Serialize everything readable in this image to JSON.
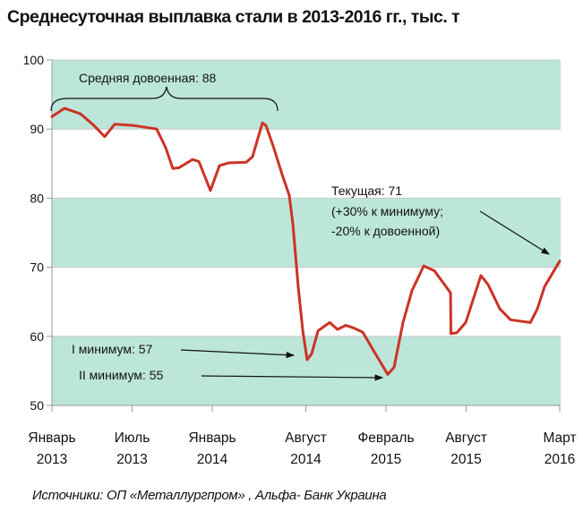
{
  "chart_data": {
    "type": "line",
    "title": "Среднесуточная выплавка стали в 2013-2016 гг., тыс. т",
    "xlabel": "",
    "ylabel": "",
    "ylim": [
      50,
      100
    ],
    "yticks": [
      50,
      60,
      70,
      80,
      90,
      100
    ],
    "xlim_months_from_jan_2013": [
      0,
      38
    ],
    "xticks": [
      {
        "month": 0,
        "label": [
          "Январь",
          "2013"
        ]
      },
      {
        "month": 6,
        "label": [
          "Июль",
          "2013"
        ]
      },
      {
        "month": 12,
        "label": [
          "Январь",
          "2014"
        ]
      },
      {
        "month": 19,
        "label": [
          "Август",
          "2014"
        ]
      },
      {
        "month": 25,
        "label": [
          "Февраль",
          "2015"
        ]
      },
      {
        "month": 31,
        "label": [
          "Август",
          "2015"
        ]
      },
      {
        "month": 38,
        "label": [
          "Март",
          "2016"
        ]
      }
    ],
    "bands": [
      [
        50,
        60
      ],
      [
        70,
        80
      ],
      [
        90,
        100
      ]
    ],
    "band_color": "#bce6da",
    "line_color": "#cc3324",
    "series": [
      {
        "name": "Выплавка стали",
        "x": [
          0,
          0.94,
          2.14,
          3.15,
          3.95,
          4.69,
          6.17,
          7.84,
          8.51,
          9.05,
          9.52,
          10.52,
          11.0,
          11.86,
          12.53,
          13.2,
          14.54,
          15.01,
          15.75,
          16.02,
          16.55,
          17.23,
          17.76,
          18.03,
          18.43,
          18.77,
          19.1,
          19.44,
          19.91,
          20.78,
          21.38,
          21.98,
          22.59,
          23.26,
          24.26,
          25.13,
          25.6,
          26.27,
          26.94,
          27.82,
          28.62,
          29.49,
          29.83,
          29.86,
          30.29,
          30.96,
          32.1,
          32.64,
          33.51,
          34.32,
          35.8,
          36.33,
          36.87,
          38
        ],
        "values": [
          91.8,
          93,
          92.2,
          90.5,
          88.9,
          90.7,
          90.5,
          90,
          87.3,
          84.3,
          84.4,
          85.6,
          85.3,
          81.1,
          84.7,
          85.1,
          85.2,
          86,
          90.9,
          90.5,
          87.6,
          83.4,
          80.4,
          76.3,
          67.2,
          60.8,
          56.6,
          57.5,
          60.8,
          62,
          61,
          61.6,
          61.2,
          60.6,
          57.3,
          54.5,
          55.5,
          62,
          66.6,
          70.2,
          69.5,
          67.2,
          66.3,
          60.4,
          60.5,
          62,
          68.8,
          67.5,
          64,
          62.4,
          62,
          64,
          67.2,
          70.9
        ]
      }
    ],
    "annotations": {
      "prewar": "Средняя довоенная: 88",
      "min1": "I минимум: 57",
      "min2": "II минимум: 55",
      "current": [
        "Текущая: 71",
        "(+30% к минимуму;",
        "-20% к довоенной)"
      ]
    }
  },
  "source": "Источники:  ОП «Металлургпром» , Альфа- Банк Украина"
}
